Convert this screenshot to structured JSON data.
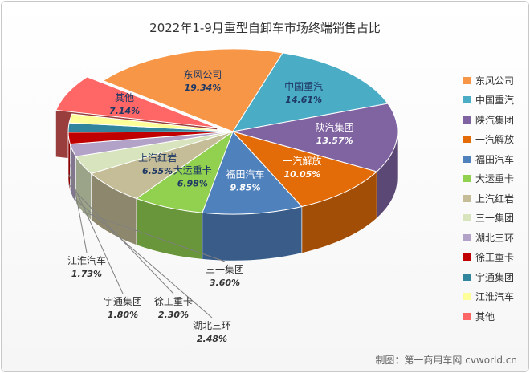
{
  "title": "2022年1-9月重型自卸车市场终端销售占比",
  "credit": "制图：第一商用车网 cvworld.cn",
  "chart_data": {
    "type": "pie",
    "style": "3d-exploded",
    "title": "2022年1-9月重型自卸车市场终端销售占比",
    "legend_position": "right",
    "slices": [
      {
        "name": "东风公司",
        "value": 19.34,
        "label": "19.34%",
        "color": "#F79646"
      },
      {
        "name": "中国重汽",
        "value": 14.61,
        "label": "14.61%",
        "color": "#4BACC6"
      },
      {
        "name": "陕汽集团",
        "value": 13.57,
        "label": "13.57%",
        "color": "#8064A2"
      },
      {
        "name": "一汽解放",
        "value": 10.05,
        "label": "10.05%",
        "color": "#E36C09"
      },
      {
        "name": "福田汽车",
        "value": 9.85,
        "label": "9.85%",
        "color": "#4F81BD"
      },
      {
        "name": "大运重卡",
        "value": 6.98,
        "label": "6.98%",
        "color": "#92D050"
      },
      {
        "name": "上汽红岩",
        "value": 6.55,
        "label": "6.55%",
        "color": "#C4BD97"
      },
      {
        "name": "三一集团",
        "value": 3.6,
        "label": "3.60%",
        "color": "#D7E4BD"
      },
      {
        "name": "湖北三环",
        "value": 2.48,
        "label": "2.48%",
        "color": "#B3A2C7"
      },
      {
        "name": "徐工重卡",
        "value": 2.3,
        "label": "2.30%",
        "color": "#C00000"
      },
      {
        "name": "宇通集团",
        "value": 1.8,
        "label": "1.80%",
        "color": "#31859C"
      },
      {
        "name": "江淮汽车",
        "value": 1.73,
        "label": "1.73%",
        "color": "#FFFF99"
      },
      {
        "name": "其他",
        "value": 7.14,
        "label": "7.14%",
        "color": "#FF6666"
      }
    ]
  }
}
